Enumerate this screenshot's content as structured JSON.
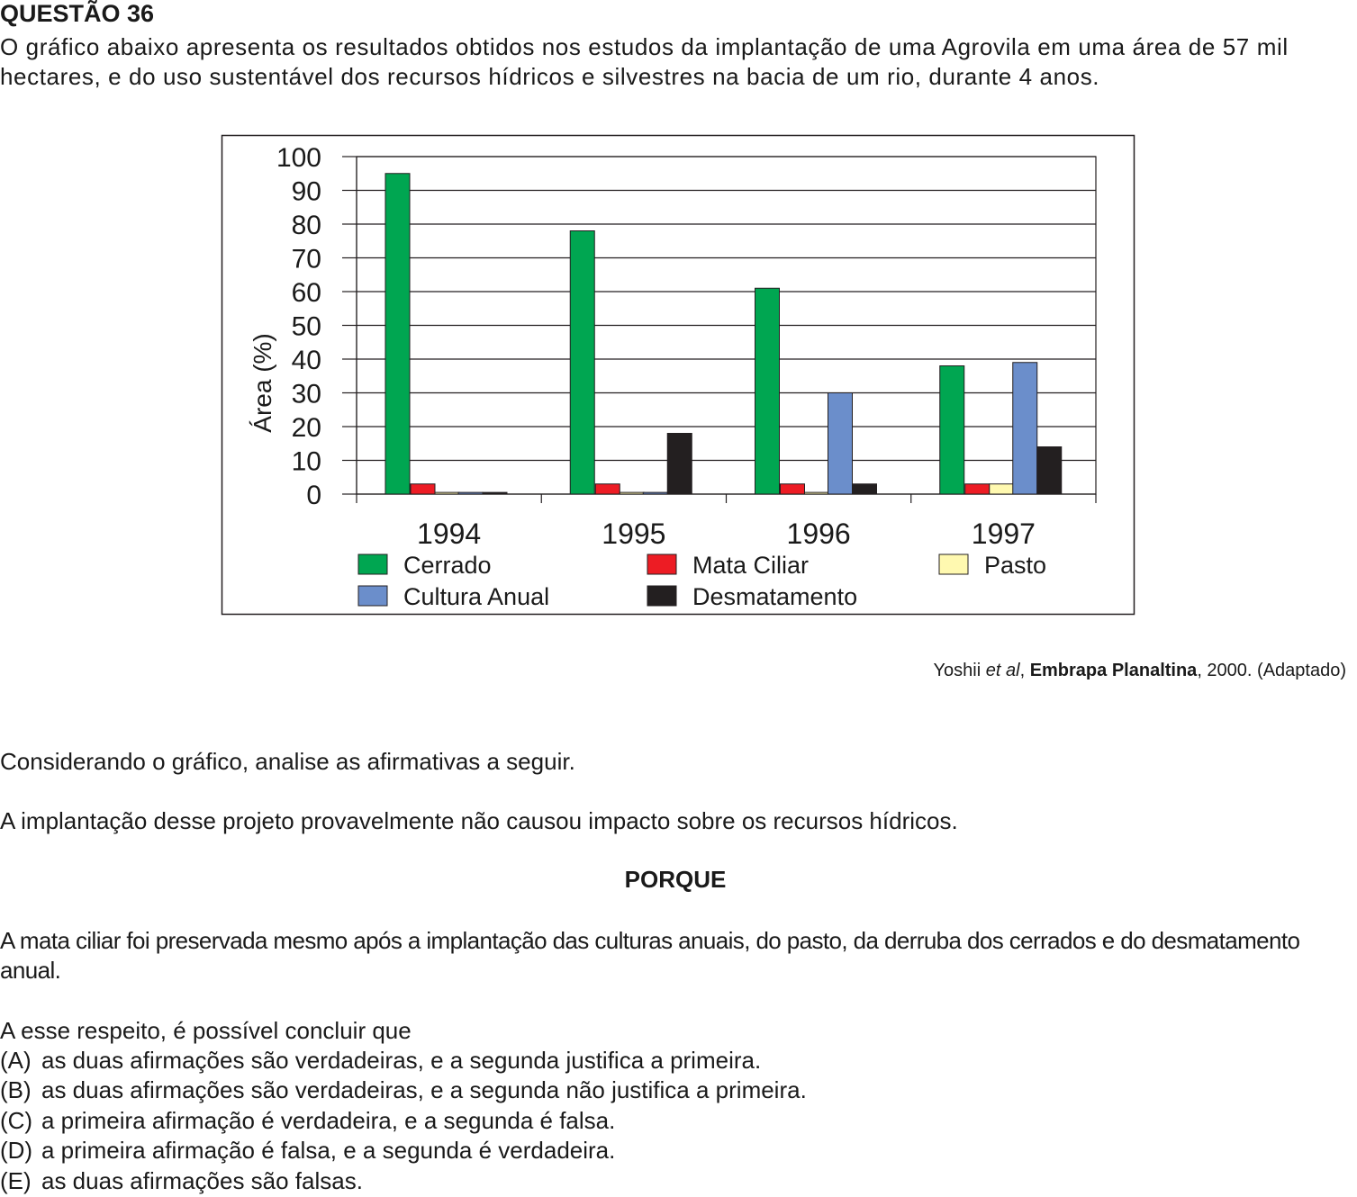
{
  "question": {
    "title": "QUESTÃO 36",
    "intro": "O gráfico abaixo apresenta os resultados obtidos nos estudos da implantação de uma Agrovila em uma área de 57 mil hectares, e do uso sustentável dos recursos hídricos e silvestres na bacia de um rio, durante 4 anos."
  },
  "chart_data": {
    "type": "bar",
    "ylabel": "Área (%)",
    "xlabel": "",
    "ylim": [
      0,
      100
    ],
    "yticks": [
      "0",
      "10",
      "20",
      "30",
      "40",
      "50",
      "60",
      "70",
      "80",
      "90",
      "100"
    ],
    "grid": true,
    "legend_position": "bottom",
    "categories": [
      "1994",
      "1995",
      "1996",
      "1997"
    ],
    "series": [
      {
        "name": "Cerrado",
        "color": "#00a651",
        "values": [
          95,
          78,
          61,
          38
        ]
      },
      {
        "name": "Mata Ciliar",
        "color": "#ed1c24",
        "values": [
          3,
          3,
          3,
          3
        ]
      },
      {
        "name": "Pasto",
        "color": "#fff9b0",
        "values": [
          0.5,
          0.5,
          0.5,
          3
        ]
      },
      {
        "name": "Cultura Anual",
        "color": "#6b8ecb",
        "values": [
          0.5,
          0.5,
          30,
          39
        ]
      },
      {
        "name": "Desmatamento",
        "color": "#231f20",
        "values": [
          0.5,
          18,
          3,
          14
        ]
      }
    ]
  },
  "source": {
    "author": "Yoshii",
    "etal": "et al",
    "publication": "Embrapa Planaltina",
    "rest": ", 2000. (Adaptado)"
  },
  "body": {
    "p1": "Considerando o gráfico, analise as afirmativas a seguir.",
    "p2": "A implantação desse projeto provavelmente não causou impacto sobre os recursos hídricos.",
    "porque": "PORQUE",
    "p3": "A mata ciliar foi preservada mesmo após a implantação das culturas anuais, do pasto, da derruba dos cerrados e do desmatamento anual.",
    "p4": "A esse respeito, é possível concluir que"
  },
  "options": [
    {
      "letter": "(A)",
      "text": "as duas afirmações são verdadeiras, e a segunda justifica a primeira."
    },
    {
      "letter": "(B)",
      "text": "as duas afirmações são verdadeiras, e a segunda não justifica a primeira."
    },
    {
      "letter": "(C)",
      "text": "a primeira afirmação é verdadeira, e a segunda é falsa."
    },
    {
      "letter": "(D)",
      "text": "a primeira afirmação é falsa, e a segunda é verdadeira."
    },
    {
      "letter": "(E)",
      "text": "as duas afirmações são falsas."
    }
  ]
}
